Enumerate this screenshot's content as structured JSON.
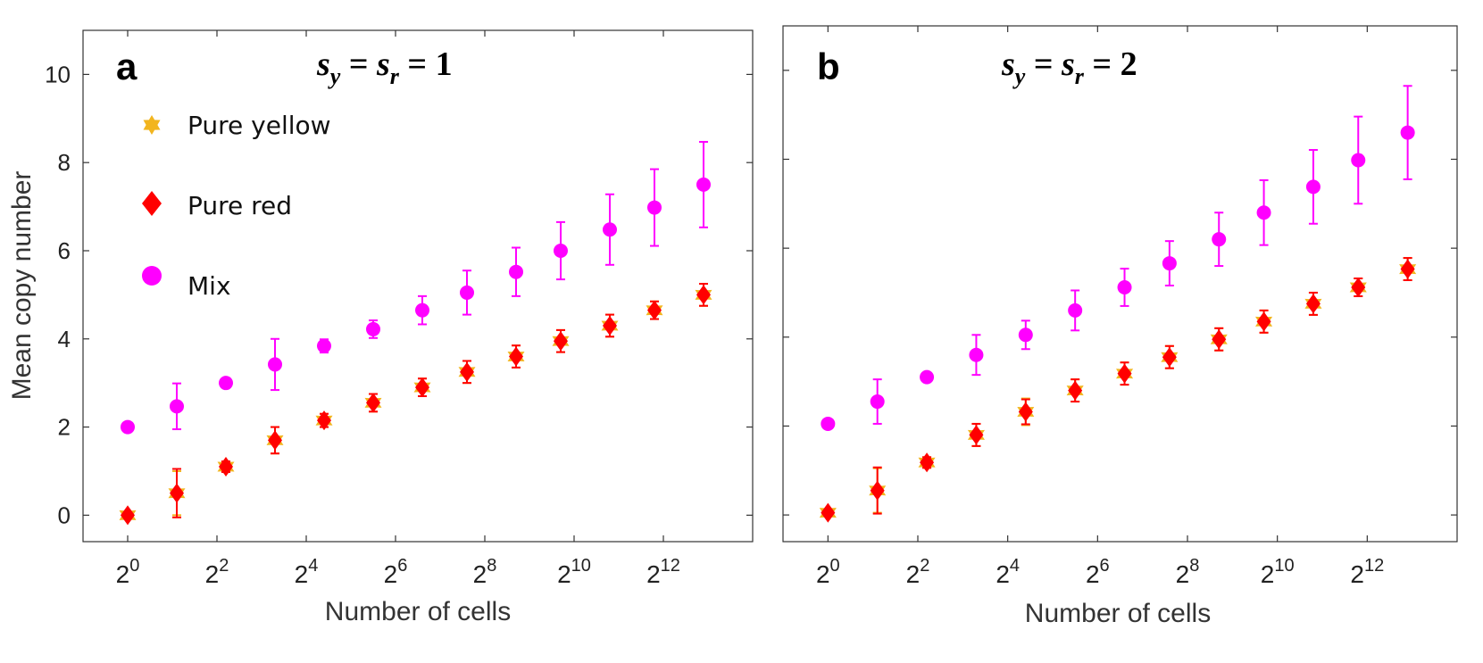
{
  "figure": {
    "colors": {
      "yellow": "#f2b51f",
      "red": "#ff0000",
      "mix": "#ff00ff",
      "axis": "#333333"
    },
    "legend": [
      {
        "label": "Pure yellow",
        "icon": "star-icon"
      },
      {
        "label": "Pure red",
        "icon": "diamond-icon"
      },
      {
        "label": "Mix",
        "icon": "circle-icon"
      }
    ]
  },
  "chart_data": [
    {
      "type": "scatter",
      "panel_letter": "a",
      "title": "s_y = s_r = 1",
      "title_parts": {
        "s1": "s",
        "sub1": "y",
        "eq1": " = ",
        "s2": "s",
        "sub2": "r",
        "eq2": " = ",
        "val": "1"
      },
      "xlabel": "Number of cells",
      "ylabel": "Mean copy number",
      "xlim": [
        -1,
        14
      ],
      "ylim": [
        -0.6,
        11
      ],
      "x_ticks": [
        {
          "exp": "0",
          "v": 0
        },
        {
          "exp": "2",
          "v": 2
        },
        {
          "exp": "4",
          "v": 4
        },
        {
          "exp": "6",
          "v": 6
        },
        {
          "exp": "8",
          "v": 8
        },
        {
          "exp": "10",
          "v": 10
        },
        {
          "exp": "12",
          "v": 12
        }
      ],
      "y_ticks": [
        "0",
        "2",
        "4",
        "6",
        "8",
        "10"
      ],
      "x_log2": [
        0,
        1.1,
        2.2,
        3.3,
        4.4,
        5.5,
        6.6,
        7.6,
        8.7,
        9.7,
        10.8,
        11.8,
        12.9
      ],
      "series": [
        {
          "name": "Pure yellow",
          "marker": "star",
          "values": [
            0,
            0.5,
            1.1,
            1.7,
            2.15,
            2.55,
            2.9,
            3.25,
            3.6,
            3.95,
            4.3,
            4.65,
            5.0
          ],
          "err": [
            0,
            0.5,
            0.12,
            0.3,
            0.15,
            0.2,
            0.2,
            0.25,
            0.25,
            0.25,
            0.25,
            0.2,
            0.25
          ]
        },
        {
          "name": "Pure red",
          "marker": "diamond",
          "values": [
            0,
            0.5,
            1.1,
            1.7,
            2.15,
            2.55,
            2.9,
            3.25,
            3.6,
            3.95,
            4.3,
            4.65,
            5.0
          ],
          "err": [
            0,
            0.55,
            0.12,
            0.3,
            0.15,
            0.2,
            0.2,
            0.25,
            0.25,
            0.25,
            0.25,
            0.2,
            0.25
          ]
        },
        {
          "name": "Mix",
          "marker": "circle",
          "values": [
            2.0,
            2.47,
            3.0,
            3.42,
            3.84,
            4.22,
            4.65,
            5.05,
            5.52,
            6.0,
            6.48,
            6.98,
            7.5
          ],
          "err": [
            0,
            0.52,
            0,
            0.58,
            0.15,
            0.2,
            0.32,
            0.5,
            0.55,
            0.65,
            0.8,
            0.87,
            0.97
          ]
        }
      ]
    },
    {
      "type": "scatter",
      "panel_letter": "b",
      "title": "s_y = s_r = 2",
      "title_parts": {
        "s1": "s",
        "sub1": "y",
        "eq1": " = ",
        "s2": "s",
        "sub2": "r",
        "eq2": " = ",
        "val": "2"
      },
      "xlabel": "Number of cells",
      "ylabel": "",
      "xlim": [
        -1,
        14
      ],
      "ylim": [
        -0.6,
        11
      ],
      "x_ticks": [
        {
          "exp": "0",
          "v": 0
        },
        {
          "exp": "2",
          "v": 2
        },
        {
          "exp": "4",
          "v": 4
        },
        {
          "exp": "6",
          "v": 6
        },
        {
          "exp": "8",
          "v": 8
        },
        {
          "exp": "10",
          "v": 10
        },
        {
          "exp": "12",
          "v": 12
        }
      ],
      "y_ticks": [
        "",
        "",
        "",
        "",
        "",
        ""
      ],
      "x_log2": [
        0,
        1.1,
        2.2,
        3.3,
        4.4,
        5.5,
        6.6,
        7.6,
        8.7,
        9.7,
        10.8,
        11.8,
        12.9
      ],
      "series": [
        {
          "name": "Pure yellow",
          "marker": "star",
          "values": [
            0.05,
            0.55,
            1.18,
            1.8,
            2.32,
            2.8,
            3.18,
            3.55,
            3.95,
            4.35,
            4.75,
            5.12,
            5.53
          ],
          "err": [
            0,
            0.5,
            0.12,
            0.25,
            0.3,
            0.25,
            0.25,
            0.25,
            0.25,
            0.25,
            0.25,
            0.2,
            0.25
          ]
        },
        {
          "name": "Pure red",
          "marker": "diamond",
          "values": [
            0.05,
            0.55,
            1.18,
            1.8,
            2.32,
            2.8,
            3.18,
            3.55,
            3.95,
            4.35,
            4.75,
            5.12,
            5.53
          ],
          "err": [
            0,
            0.52,
            0.12,
            0.25,
            0.28,
            0.25,
            0.25,
            0.25,
            0.25,
            0.25,
            0.25,
            0.2,
            0.25
          ]
        },
        {
          "name": "Mix",
          "marker": "circle",
          "values": [
            2.05,
            2.55,
            3.1,
            3.6,
            4.05,
            4.6,
            5.12,
            5.66,
            6.2,
            6.8,
            7.38,
            7.98,
            8.6
          ],
          "err": [
            0,
            0.5,
            0,
            0.45,
            0.32,
            0.45,
            0.42,
            0.5,
            0.6,
            0.73,
            0.83,
            0.98,
            1.05
          ]
        }
      ]
    }
  ]
}
